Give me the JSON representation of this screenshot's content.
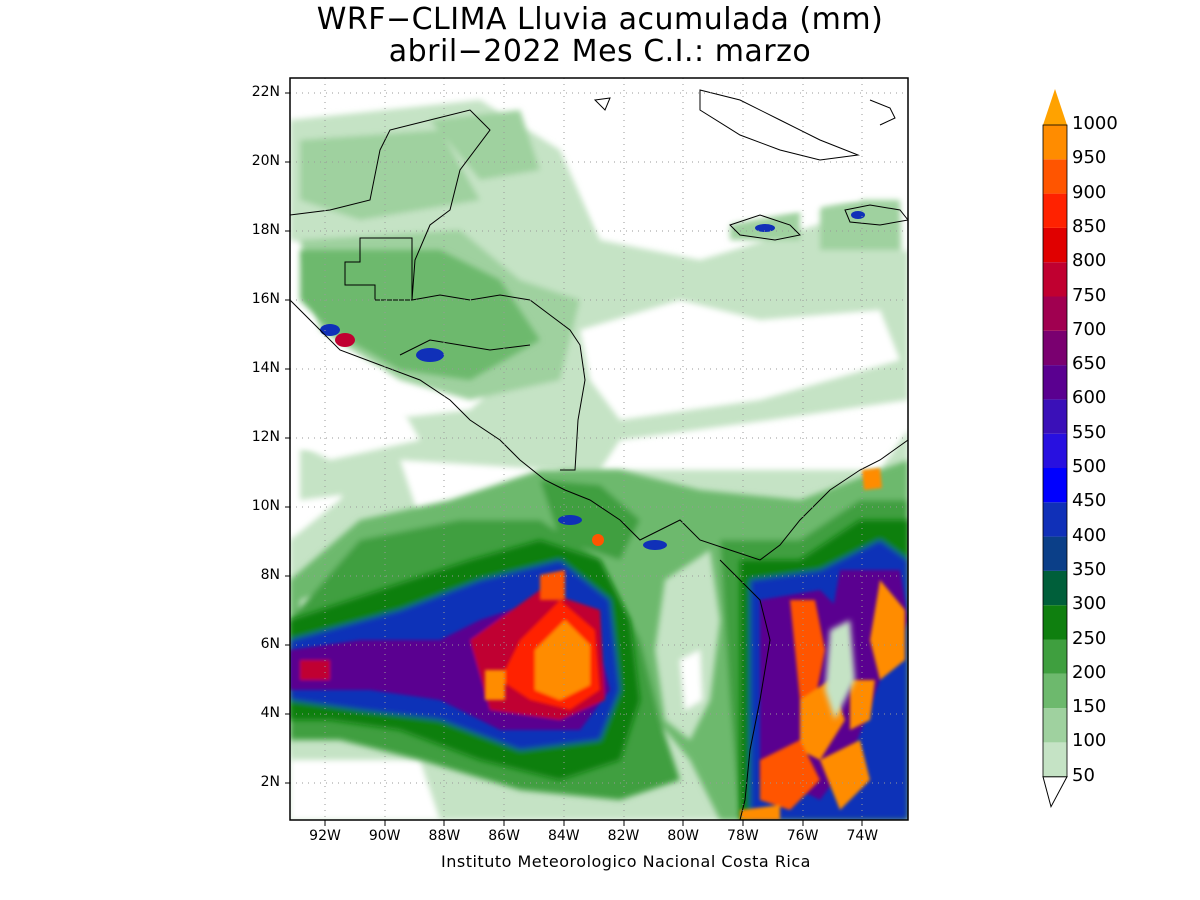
{
  "title": {
    "line1": "WRF−CLIMA Lluvia acumulada (mm)",
    "line2": "abril−2022 Mes C.I.: marzo"
  },
  "credit": "Instituto Meteorologico Nacional Costa Rica",
  "axes": {
    "lat_labels": [
      "22N",
      "20N",
      "18N",
      "16N",
      "14N",
      "12N",
      "10N",
      "8N",
      "6N",
      "4N",
      "2N"
    ],
    "lon_labels": [
      "92W",
      "90W",
      "88W",
      "86W",
      "84W",
      "82W",
      "80W",
      "78W",
      "76W",
      "74W"
    ]
  },
  "colorbar": {
    "levels": [
      "50",
      "100",
      "150",
      "200",
      "250",
      "300",
      "350",
      "400",
      "450",
      "500",
      "550",
      "600",
      "650",
      "700",
      "750",
      "800",
      "850",
      "900",
      "950",
      "1000"
    ],
    "colors": [
      "#ffffff",
      "#c5e3c5",
      "#9fd19f",
      "#6db96d",
      "#3f9f3f",
      "#0f7f0f",
      "#005f3a",
      "#0b3f88",
      "#1030b8",
      "#0000ff",
      "#2810e0",
      "#3a10b8",
      "#5a0090",
      "#7a0070",
      "#a00050",
      "#c00030",
      "#e00000",
      "#ff2200",
      "#ff5500",
      "#ff8c00",
      "#ffa200"
    ]
  }
}
